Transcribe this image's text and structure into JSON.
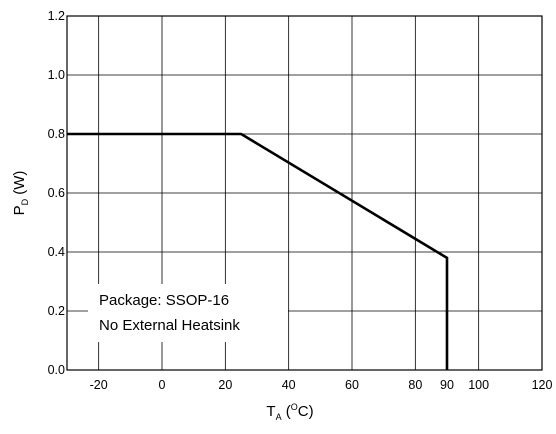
{
  "chart_data": {
    "type": "line",
    "xlabel": {
      "main": "T",
      "subscript": "A",
      "open": " (",
      "superscript": "O",
      "unit": "C)"
    },
    "ylabel": {
      "main": "P",
      "subscript": "D",
      "unit": " (W)"
    },
    "xlim": [
      -30,
      120
    ],
    "ylim": [
      0,
      1.2
    ],
    "xticks": [
      -20,
      0,
      20,
      40,
      60,
      80,
      90,
      100,
      120
    ],
    "xtick_labels": [
      "-20",
      "0",
      "20",
      "40",
      "60",
      "80",
      "90",
      "100",
      "120"
    ],
    "yticks": [
      0,
      0.2,
      0.4,
      0.6,
      0.8,
      1.0,
      1.2
    ],
    "ytick_labels": [
      "0.0",
      "0.2",
      "0.4",
      "0.6",
      "0.8",
      "1.0",
      "1.2"
    ],
    "grid_x": [
      -20,
      0,
      20,
      40,
      60,
      80,
      100
    ],
    "grid_y": [
      0.2,
      0.4,
      0.6,
      0.8,
      1.0
    ],
    "grid": true,
    "series": [
      {
        "x": [
          -30,
          25,
          90,
          90
        ],
        "y": [
          0.8,
          0.8,
          0.38,
          0
        ]
      }
    ],
    "annotation": [
      "Package: SSOP-16",
      "No External Heatsink"
    ]
  }
}
